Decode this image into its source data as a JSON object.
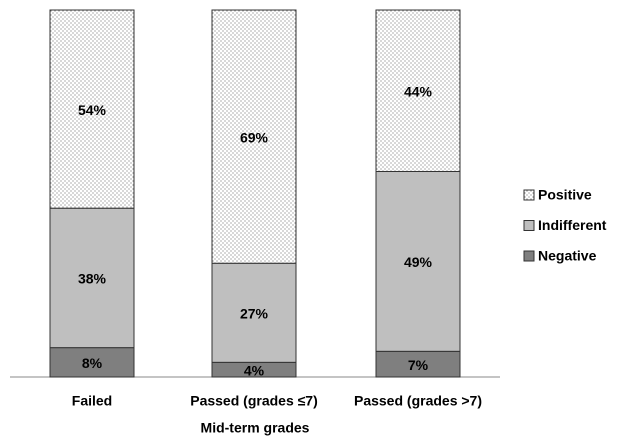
{
  "chart_data": {
    "type": "stacked_bar",
    "x_label": "Mid-term grades",
    "categories": [
      "Failed",
      "Passed (grades ≤7)",
      "Passed (grades >7)"
    ],
    "series": [
      {
        "name": "Negative",
        "color": "#7f7f7f",
        "values": [
          8,
          4,
          7
        ],
        "value_labels": [
          "8%",
          "4%",
          "7%"
        ]
      },
      {
        "name": "Indifferent",
        "color": "#bfbfbf",
        "values": [
          38,
          27,
          49
        ],
        "value_labels": [
          "38%",
          "27%",
          "49%"
        ]
      },
      {
        "name": "Positive",
        "color": "dotted",
        "values": [
          54,
          69,
          44
        ],
        "value_labels": [
          "54%",
          "69%",
          "44%"
        ]
      }
    ],
    "ylim": [
      0,
      100
    ],
    "legend": "right"
  }
}
